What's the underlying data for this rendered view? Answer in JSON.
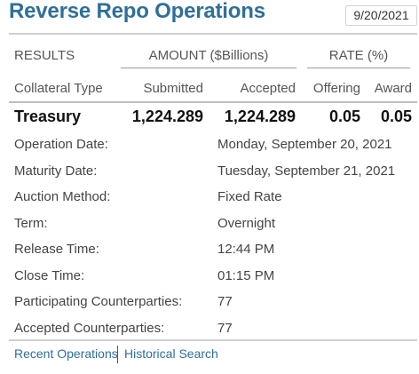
{
  "header": {
    "title": "Reverse Repo Operations",
    "date": "9/20/2021"
  },
  "table": {
    "results_label": "RESULTS",
    "amount_label": "AMOUNT ($Billions)",
    "rate_label": "RATE (%)",
    "columns": {
      "collateral_type": "Collateral Type",
      "submitted": "Submitted",
      "accepted": "Accepted",
      "offering": "Offering",
      "award": "Award"
    },
    "rows": [
      {
        "type": "Treasury",
        "submitted": "1,224.289",
        "accepted": "1,224.289",
        "offering": "0.05",
        "award": "0.05"
      }
    ]
  },
  "details": [
    {
      "label": "Operation Date:",
      "value": "Monday, September 20, 2021"
    },
    {
      "label": "Maturity Date:",
      "value": "Tuesday, September 21, 2021"
    },
    {
      "label": "Auction Method:",
      "value": "Fixed Rate"
    },
    {
      "label": "Term:",
      "value": "Overnight"
    },
    {
      "label": "Release Time:",
      "value": "12:44 PM"
    },
    {
      "label": "Close Time:",
      "value": "01:15 PM"
    },
    {
      "label": "Participating Counterparties:",
      "value": "77"
    },
    {
      "label": "Accepted Counterparties:",
      "value": "77"
    }
  ],
  "links": {
    "recent": "Recent Operations",
    "historical": "Historical Search"
  },
  "colors": {
    "title": "#2f6f98",
    "link": "#2f6f98"
  }
}
